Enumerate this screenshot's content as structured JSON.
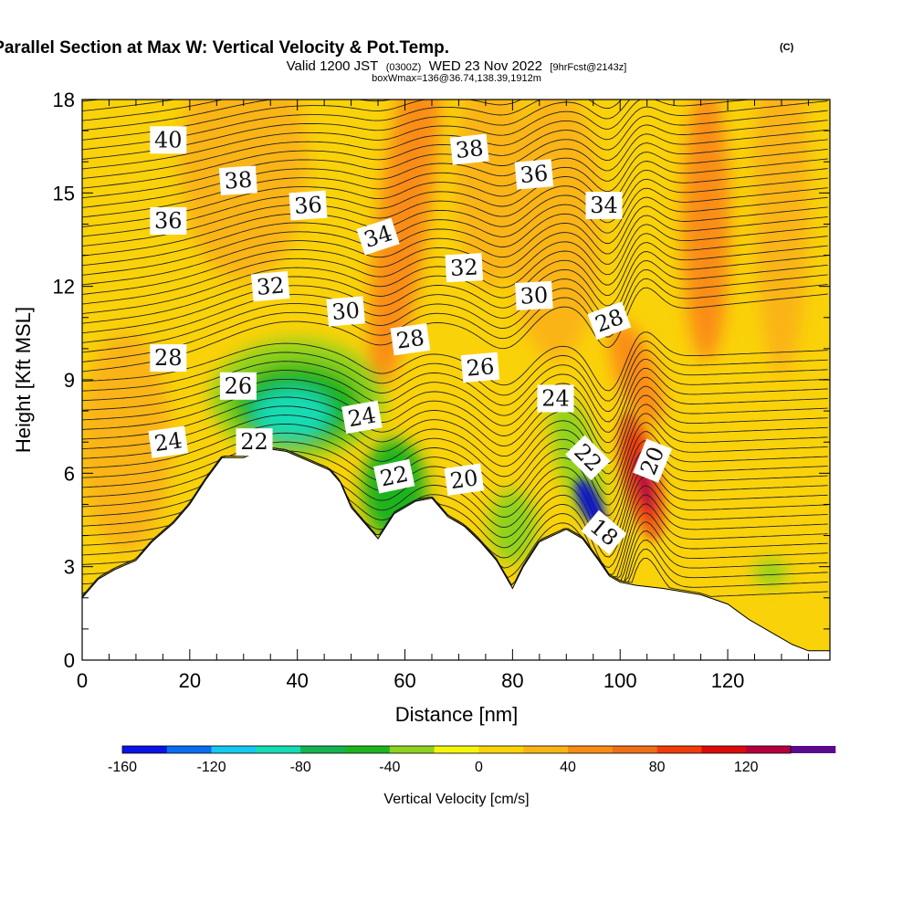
{
  "header": {
    "title": "Wind-Parallel Section at Max W: Vertical Velocity & Pot.Temp.",
    "title_mark": "(C)",
    "valid_prefix": "Valid 1200 JST",
    "valid_utc": "(0300Z)",
    "valid_date": "WED 23 Nov 2022",
    "forecast_info": "[9hrFcst@2143z]",
    "box_info": "boxWmax=136@36.74,138.39,1912m"
  },
  "colorbar": {
    "label": "Vertical Velocity [cm/s]",
    "min": -160,
    "max": 140,
    "step": 20,
    "tick_labels": [
      "-160",
      "-120",
      "-80",
      "-40",
      "0",
      "40",
      "80",
      "120"
    ],
    "tick_values": [
      -160,
      -120,
      -80,
      -40,
      0,
      40,
      80,
      120
    ],
    "colors": [
      "#0a14e6",
      "#0a6ef0",
      "#14c8f0",
      "#14dcb4",
      "#14b450",
      "#1eb41e",
      "#8cd21e",
      "#f5f50a",
      "#fad20a",
      "#fab414",
      "#fa8c14",
      "#f06e14",
      "#f03c0a",
      "#dc0a0a",
      "#b4003c",
      "#5a0a8c"
    ]
  },
  "chart_data": {
    "type": "contour",
    "title": "Wind-Parallel Section at Max W: Vertical Velocity & Pot.Temp.",
    "xlabel": "Distance [nm]",
    "ylabel": "Height [Kft MSL]",
    "xlim": [
      0,
      139
    ],
    "ylim": [
      0,
      18
    ],
    "x_ticks": [
      0,
      20,
      40,
      60,
      80,
      100,
      120
    ],
    "x_tick_labels": [
      "0",
      "20",
      "40",
      "60",
      "80",
      "100",
      "120"
    ],
    "y_ticks": [
      0,
      3,
      6,
      9,
      12,
      15,
      18
    ],
    "y_tick_labels": [
      "0",
      "3",
      "6",
      "9",
      "12",
      "15",
      "18"
    ],
    "filled_field": "Vertical Velocity [cm/s]",
    "contour_field": "Potential Temperature [C]",
    "contour_interval": 1,
    "background_level": 10,
    "terrain": [
      [
        0,
        2.0
      ],
      [
        3,
        2.6
      ],
      [
        6,
        2.9
      ],
      [
        10,
        3.2
      ],
      [
        13,
        3.8
      ],
      [
        17,
        4.4
      ],
      [
        20,
        5.0
      ],
      [
        23,
        5.8
      ],
      [
        26,
        6.5
      ],
      [
        30,
        6.5
      ],
      [
        34,
        6.8
      ],
      [
        38,
        6.7
      ],
      [
        42,
        6.4
      ],
      [
        46,
        6.1
      ],
      [
        48,
        5.7
      ],
      [
        50,
        4.9
      ],
      [
        52,
        4.5
      ],
      [
        55,
        3.9
      ],
      [
        58,
        4.7
      ],
      [
        62,
        5.1
      ],
      [
        65,
        5.2
      ],
      [
        68,
        4.6
      ],
      [
        71,
        4.3
      ],
      [
        74,
        3.8
      ],
      [
        77,
        3.2
      ],
      [
        80,
        2.3
      ],
      [
        82,
        3.0
      ],
      [
        85,
        3.8
      ],
      [
        90,
        4.2
      ],
      [
        93,
        3.9
      ],
      [
        96,
        3.2
      ],
      [
        98,
        2.7
      ],
      [
        100,
        2.5
      ],
      [
        103,
        2.4
      ],
      [
        108,
        2.3
      ],
      [
        115,
        2.1
      ],
      [
        120,
        1.8
      ],
      [
        124,
        1.3
      ],
      [
        128,
        0.9
      ],
      [
        132,
        0.5
      ],
      [
        135,
        0.3
      ],
      [
        139,
        0.3
      ]
    ],
    "regions": [
      {
        "name": "descent-core",
        "x": 94,
        "y": 5.0,
        "w": -150
      },
      {
        "name": "ascent-core",
        "x": 104,
        "y": 5.8,
        "w": 125
      },
      {
        "name": "lee-wave-descent",
        "x": 40,
        "y": 8.2,
        "w": -90
      },
      {
        "name": "upper-ascent-column",
        "x": 60,
        "y": 14.0,
        "w": 50
      },
      {
        "name": "upper-ascent-right",
        "x": 116,
        "y": 14.0,
        "w": 60
      }
    ],
    "contour_labels": [
      {
        "value": "40",
        "x": 16,
        "y": 16.7,
        "rot": 0
      },
      {
        "value": "38",
        "x": 29,
        "y": 15.4,
        "rot": -4
      },
      {
        "value": "36",
        "x": 16,
        "y": 14.1,
        "rot": 0
      },
      {
        "value": "36",
        "x": 42,
        "y": 14.6,
        "rot": -4
      },
      {
        "value": "34",
        "x": 55,
        "y": 13.6,
        "rot": -18
      },
      {
        "value": "38",
        "x": 72,
        "y": 16.4,
        "rot": -6
      },
      {
        "value": "36",
        "x": 84,
        "y": 15.6,
        "rot": -5
      },
      {
        "value": "34",
        "x": 97,
        "y": 14.6,
        "rot": 0
      },
      {
        "value": "32",
        "x": 71,
        "y": 12.6,
        "rot": -3
      },
      {
        "value": "30",
        "x": 84,
        "y": 11.7,
        "rot": -3
      },
      {
        "value": "32",
        "x": 35,
        "y": 12.0,
        "rot": -5
      },
      {
        "value": "30",
        "x": 49,
        "y": 11.2,
        "rot": -5
      },
      {
        "value": "28",
        "x": 61,
        "y": 10.3,
        "rot": -8
      },
      {
        "value": "28",
        "x": 98,
        "y": 10.9,
        "rot": -20
      },
      {
        "value": "28",
        "x": 16,
        "y": 9.7,
        "rot": 0
      },
      {
        "value": "26",
        "x": 29,
        "y": 8.8,
        "rot": 0
      },
      {
        "value": "26",
        "x": 74,
        "y": 9.4,
        "rot": -5
      },
      {
        "value": "24",
        "x": 88,
        "y": 8.4,
        "rot": 0
      },
      {
        "value": "24",
        "x": 52,
        "y": 7.8,
        "rot": -10
      },
      {
        "value": "24",
        "x": 16,
        "y": 7.0,
        "rot": -8
      },
      {
        "value": "22",
        "x": 32,
        "y": 7.0,
        "rot": 0
      },
      {
        "value": "22",
        "x": 58,
        "y": 5.9,
        "rot": -12
      },
      {
        "value": "20",
        "x": 71,
        "y": 5.8,
        "rot": -8
      },
      {
        "value": "22",
        "x": 94,
        "y": 6.5,
        "rot": 45
      },
      {
        "value": "20",
        "x": 106,
        "y": 6.4,
        "rot": -68
      },
      {
        "value": "18",
        "x": 97,
        "y": 4.1,
        "rot": 40
      }
    ]
  }
}
